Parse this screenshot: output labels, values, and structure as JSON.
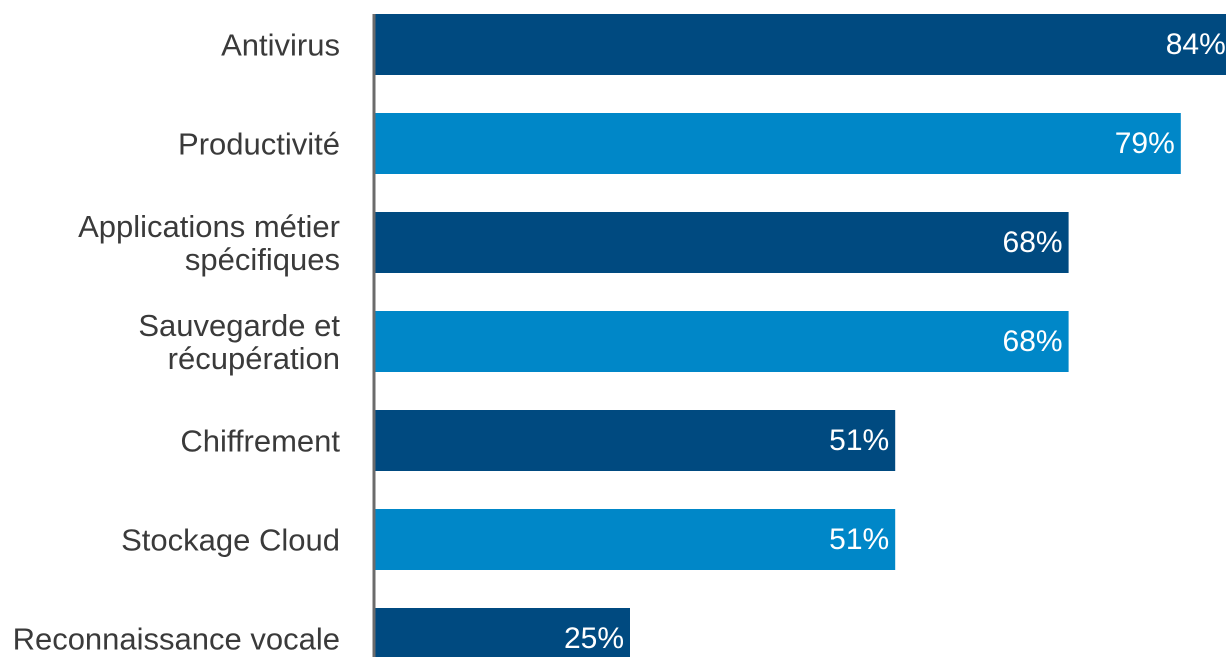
{
  "chart_data": {
    "type": "bar",
    "orientation": "horizontal",
    "categories": [
      [
        "Antivirus"
      ],
      [
        "Productivité"
      ],
      [
        "Applications métier",
        "spécifiques"
      ],
      [
        "Sauvegarde et",
        "récupération"
      ],
      [
        "Chiffrement"
      ],
      [
        "Stockage Cloud"
      ],
      [
        "Reconnaissance vocale"
      ]
    ],
    "values": [
      84,
      79,
      68,
      68,
      51,
      51,
      25
    ],
    "value_labels": [
      "84%",
      "79%",
      "68%",
      "68%",
      "51%",
      "51%",
      "25%"
    ],
    "bar_colors": [
      "#004a80",
      "#0087c8",
      "#004a80",
      "#0087c8",
      "#004a80",
      "#0087c8",
      "#004a80"
    ],
    "axis_color": "#6b6b6b",
    "xlim": [
      0,
      100
    ],
    "grid": false,
    "legend": "none",
    "title": "",
    "xlabel": "",
    "ylabel": ""
  }
}
